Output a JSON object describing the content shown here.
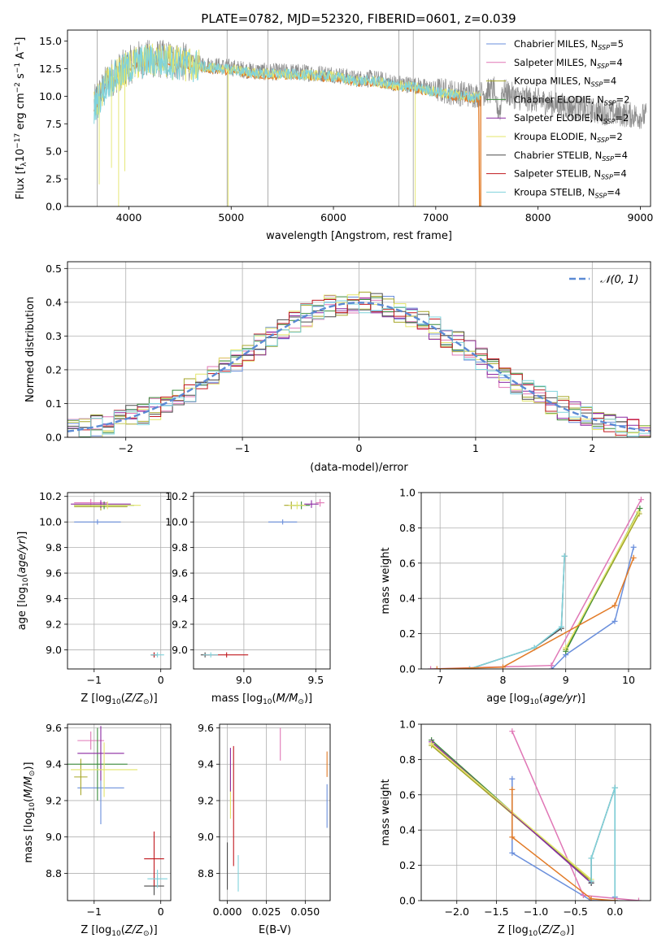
{
  "colors": {
    "chabrier_miles": "#6a8fdc",
    "salpeter_miles": "#e077b6",
    "kroupa_miles": "#a6a628",
    "chabrier_elodie": "#3c8c3c",
    "salpeter_elodie": "#8b2aa2",
    "kroupa_elodie": "#e3e56a",
    "chabrier_stelib": "#4b4b4b",
    "salpeter_stelib": "#c0181e",
    "kroupa_stelib": "#7fd3dc",
    "data_grey": "#8c8c8c",
    "orange": "#e27a26",
    "normal_dash": "#5b8ad4"
  },
  "legend": {
    "items": [
      {
        "label": "Chabrier MILES, N",
        "sub": "SSP",
        "tail": "=5",
        "color_key": "chabrier_miles"
      },
      {
        "label": "Salpeter MILES, N",
        "sub": "SSP",
        "tail": "=4",
        "color_key": "salpeter_miles"
      },
      {
        "label": "Kroupa MILES, N",
        "sub": "SSP",
        "tail": "=4",
        "color_key": "kroupa_miles"
      },
      {
        "label": "Chabrier ELODIE, N",
        "sub": "SSP",
        "tail": "=2",
        "color_key": "chabrier_elodie"
      },
      {
        "label": "Salpeter ELODIE, N",
        "sub": "SSP",
        "tail": "=2",
        "color_key": "salpeter_elodie"
      },
      {
        "label": "Kroupa ELODIE, N",
        "sub": "SSP",
        "tail": "=2",
        "color_key": "kroupa_elodie"
      },
      {
        "label": "Chabrier STELIB, N",
        "sub": "SSP",
        "tail": "=4",
        "color_key": "chabrier_stelib"
      },
      {
        "label": "Salpeter STELIB, N",
        "sub": "SSP",
        "tail": "=4",
        "color_key": "salpeter_stelib"
      },
      {
        "label": "Kroupa STELIB, N",
        "sub": "SSP",
        "tail": "=4",
        "color_key": "kroupa_stelib"
      }
    ]
  },
  "chart_data": [
    {
      "id": "spectrum",
      "type": "line",
      "title": "PLATE=0782, MJD=52320, FIBERID=0601, z=0.039",
      "xlabel": "wavelength [Angstrom, rest frame]",
      "ylabel": "Flux [f",
      "ylabel_parts": [
        "Flux [f",
        "λ",
        "10",
        "−17",
        " erg cm",
        "−2",
        " s",
        "−1",
        " A",
        "−1",
        "]"
      ],
      "xlim": [
        3400,
        9100
      ],
      "ylim": [
        0,
        16
      ],
      "xticks": [
        4000,
        5000,
        6000,
        7000,
        8000,
        9000
      ],
      "yticks": [
        0.0,
        2.5,
        5.0,
        7.5,
        10.0,
        12.5,
        15.0
      ],
      "continuum": {
        "x": [
          3650,
          3800,
          3950,
          4100,
          4250,
          4400,
          4600,
          4800,
          5000,
          5200,
          5400,
          5600,
          5800,
          6000,
          6200,
          6400,
          6600,
          6800,
          7000,
          7200,
          7400,
          7600,
          7800,
          8000,
          8200,
          8400,
          8600,
          8800,
          9000
        ],
        "y": [
          9.0,
          11.5,
          12.5,
          13.3,
          13.4,
          13.3,
          13.0,
          12.8,
          12.6,
          12.3,
          12.2,
          12.2,
          12.1,
          12.0,
          11.6,
          11.6,
          11.2,
          11.0,
          10.6,
          10.3,
          10.1,
          10.7,
          9.9,
          9.6,
          9.2,
          8.9,
          8.6,
          8.4,
          8.2
        ]
      }
    },
    {
      "id": "residuals",
      "type": "line",
      "xlabel": "(data-model)/error",
      "ylabel": "Normed distribution",
      "xlim": [
        -2.5,
        2.5
      ],
      "ylim": [
        0,
        0.52
      ],
      "xticks": [
        -2,
        -1,
        0,
        1,
        2
      ],
      "yticks": [
        0.0,
        0.1,
        0.2,
        0.3,
        0.4,
        0.5
      ],
      "legend": "$\\mathcal{N}(0,1)$",
      "legend_text": "𝒩(0, 1)",
      "series_name": "N(0,1)"
    },
    {
      "id": "age_vs_Z",
      "type": "scatter",
      "xlabel": "Z [log10(Z/Z⊙)]",
      "ylabel": "age [log10(age/yr)]",
      "xlim": [
        -1.4,
        0.15
      ],
      "ylim": [
        8.85,
        10.23
      ],
      "xticks": [
        -1,
        0
      ],
      "yticks": [
        9.0,
        9.2,
        9.4,
        9.6,
        9.8,
        10.0,
        10.2
      ],
      "points": [
        {
          "x": -0.95,
          "y": 10.0,
          "xerr": 0.35,
          "yerr": 0.02,
          "color_key": "chabrier_miles"
        },
        {
          "x": -1.05,
          "y": 10.15,
          "xerr": 0.25,
          "yerr": 0.03,
          "color_key": "salpeter_miles"
        },
        {
          "x": -0.9,
          "y": 10.12,
          "xerr": 0.4,
          "yerr": 0.03,
          "color_key": "kroupa_miles"
        },
        {
          "x": -0.85,
          "y": 10.13,
          "xerr": 0.45,
          "yerr": 0.03,
          "color_key": "chabrier_elodie"
        },
        {
          "x": -0.9,
          "y": 10.14,
          "xerr": 0.45,
          "yerr": 0.03,
          "color_key": "salpeter_elodie"
        },
        {
          "x": -0.8,
          "y": 10.13,
          "xerr": 0.5,
          "yerr": 0.03,
          "color_key": "kroupa_elodie"
        },
        {
          "x": -0.1,
          "y": 8.96,
          "xerr": 0.05,
          "yerr": 0.02,
          "color_key": "chabrier_stelib"
        },
        {
          "x": -0.1,
          "y": 8.96,
          "xerr": 0.05,
          "yerr": 0.02,
          "color_key": "salpeter_stelib"
        },
        {
          "x": -0.05,
          "y": 8.96,
          "xerr": 0.1,
          "yerr": 0.02,
          "color_key": "kroupa_stelib"
        }
      ]
    },
    {
      "id": "age_vs_mass",
      "type": "scatter",
      "xlabel": "mass [log10(M/M⊙)]",
      "ylabel": "",
      "xlim": [
        8.65,
        9.6
      ],
      "ylim": [
        8.85,
        10.23
      ],
      "xticks": [
        9.0,
        9.5
      ],
      "yticks": [
        9.0,
        9.2,
        9.4,
        9.6,
        9.8,
        10.0,
        10.2
      ],
      "points": [
        {
          "x": 9.27,
          "y": 10.0,
          "xerr": 0.1,
          "yerr": 0.02,
          "color_key": "chabrier_miles"
        },
        {
          "x": 9.53,
          "y": 10.15,
          "xerr": 0.03,
          "yerr": 0.03,
          "color_key": "salpeter_miles"
        },
        {
          "x": 9.33,
          "y": 10.13,
          "xerr": 0.05,
          "yerr": 0.03,
          "color_key": "kroupa_miles"
        },
        {
          "x": 9.4,
          "y": 10.13,
          "xerr": 0.06,
          "yerr": 0.03,
          "color_key": "chabrier_elodie"
        },
        {
          "x": 9.47,
          "y": 10.14,
          "xerr": 0.05,
          "yerr": 0.03,
          "color_key": "salpeter_elodie"
        },
        {
          "x": 9.37,
          "y": 10.13,
          "xerr": 0.06,
          "yerr": 0.03,
          "color_key": "kroupa_elodie"
        },
        {
          "x": 8.73,
          "y": 8.96,
          "xerr": 0.03,
          "yerr": 0.02,
          "color_key": "chabrier_stelib"
        },
        {
          "x": 8.88,
          "y": 8.96,
          "xerr": 0.15,
          "yerr": 0.02,
          "color_key": "salpeter_stelib"
        },
        {
          "x": 8.77,
          "y": 8.96,
          "xerr": 0.05,
          "yerr": 0.02,
          "color_key": "kroupa_stelib"
        }
      ]
    },
    {
      "id": "weight_vs_age",
      "type": "line",
      "xlabel": "age [log10(age/yr)]",
      "ylabel": "mass weight",
      "xlim": [
        6.7,
        10.35
      ],
      "ylim": [
        0,
        1.0
      ],
      "xticks": [
        7,
        8,
        9,
        10
      ],
      "yticks": [
        0.0,
        0.2,
        0.4,
        0.6,
        0.8,
        1.0
      ],
      "series": [
        {
          "name": "Chabrier MILES",
          "color_key": "chabrier_miles",
          "x": [
            8.78,
            9.0,
            9.78,
            10.08
          ],
          "y": [
            0.0,
            0.08,
            0.27,
            0.69
          ]
        },
        {
          "name": "Salpeter MILES",
          "color_key": "salpeter_miles",
          "x": [
            6.85,
            8.77,
            10.2
          ],
          "y": [
            0.0,
            0.02,
            0.96
          ]
        },
        {
          "name": "Kroupa MILES",
          "color_key": "kroupa_miles",
          "x": [
            9.0,
            10.17
          ],
          "y": [
            0.11,
            0.88
          ]
        },
        {
          "name": "Chabrier ELODIE",
          "color_key": "chabrier_elodie",
          "x": [
            9.0,
            10.18
          ],
          "y": [
            0.1,
            0.91
          ]
        },
        {
          "name": "Kroupa ELODIE",
          "color_key": "kroupa_elodie",
          "x": [
            9.0,
            10.16
          ],
          "y": [
            0.12,
            0.89
          ]
        },
        {
          "name": "Chabrier STELIB",
          "color_key": "chabrier_stelib",
          "x": [
            7.47,
            8.5,
            8.93,
            8.98
          ],
          "y": [
            0.0,
            0.12,
            0.23,
            0.64
          ]
        },
        {
          "name": "Kroupa STELIB",
          "color_key": "kroupa_stelib",
          "x": [
            7.47,
            8.5,
            8.93,
            8.98
          ],
          "y": [
            0.0,
            0.12,
            0.24,
            0.64
          ]
        },
        {
          "name": "Salpeter STELIB",
          "color_key": "orange",
          "x": [
            6.95,
            8.0,
            9.78,
            10.08
          ],
          "y": [
            0.0,
            0.01,
            0.36,
            0.63
          ]
        }
      ]
    },
    {
      "id": "mass_vs_Z",
      "type": "scatter",
      "xlabel": "Z [log10(Z/Z⊙)]",
      "ylabel": "mass [log10(M/M⊙)]",
      "xlim": [
        -1.4,
        0.15
      ],
      "ylim": [
        8.65,
        9.62
      ],
      "xticks": [
        -1,
        0
      ],
      "yticks": [
        8.8,
        9.0,
        9.2,
        9.4,
        9.6
      ],
      "points": [
        {
          "x": -0.9,
          "y": 9.27,
          "xerr": 0.35,
          "yerr": 0.2,
          "color_key": "chabrier_miles"
        },
        {
          "x": -1.05,
          "y": 9.53,
          "xerr": 0.2,
          "yerr": 0.05,
          "color_key": "salpeter_miles"
        },
        {
          "x": -1.2,
          "y": 9.33,
          "xerr": 0.1,
          "yerr": 0.1,
          "color_key": "kroupa_miles"
        },
        {
          "x": -0.95,
          "y": 9.4,
          "xerr": 0.45,
          "yerr": 0.2,
          "color_key": "chabrier_elodie"
        },
        {
          "x": -0.9,
          "y": 9.46,
          "xerr": 0.35,
          "yerr": 0.15,
          "color_key": "salpeter_elodie"
        },
        {
          "x": -0.85,
          "y": 9.37,
          "xerr": 0.5,
          "yerr": 0.15,
          "color_key": "kroupa_elodie"
        },
        {
          "x": -0.1,
          "y": 8.73,
          "xerr": 0.15,
          "yerr": 0.05,
          "color_key": "chabrier_stelib"
        },
        {
          "x": -0.1,
          "y": 8.88,
          "xerr": 0.15,
          "yerr": 0.15,
          "color_key": "salpeter_stelib"
        },
        {
          "x": -0.05,
          "y": 8.77,
          "xerr": 0.15,
          "yerr": 0.05,
          "color_key": "kroupa_stelib"
        }
      ]
    },
    {
      "id": "mass_vs_ebv",
      "type": "scatter",
      "xlabel": "E(B-V)",
      "ylabel": "",
      "xlim": [
        -0.005,
        0.066
      ],
      "ylim": [
        8.65,
        9.62
      ],
      "xticks": [
        0.0,
        0.025,
        0.05
      ],
      "xticklabels": [
        "0.000",
        "0.025",
        "0.050"
      ],
      "yticks": [
        8.8,
        9.0,
        9.2,
        9.4,
        9.6
      ],
      "points": [
        {
          "x": 0.064,
          "y": 9.17,
          "xerr": 0,
          "yerr": 0.12,
          "color_key": "chabrier_miles"
        },
        {
          "x": 0.034,
          "y": 9.51,
          "xerr": 0,
          "yerr": 0.09,
          "color_key": "salpeter_miles"
        },
        {
          "x": 0.064,
          "y": 9.4,
          "xerr": 0,
          "yerr": 0.07,
          "color_key": "orange"
        },
        {
          "x": 0.002,
          "y": 9.25,
          "xerr": 0,
          "yerr": 0.15,
          "color_key": "kroupa_elodie"
        },
        {
          "x": 0.002,
          "y": 9.37,
          "xerr": 0,
          "yerr": 0.12,
          "color_key": "salpeter_elodie"
        },
        {
          "x": 0.0,
          "y": 8.84,
          "xerr": 0,
          "yerr": 0.13,
          "color_key": "chabrier_stelib"
        },
        {
          "x": 0.004,
          "y": 9.17,
          "xerr": 0,
          "yerr": 0.33,
          "color_key": "salpeter_stelib"
        },
        {
          "x": 0.007,
          "y": 8.8,
          "xerr": 0,
          "yerr": 0.1,
          "color_key": "kroupa_stelib"
        }
      ]
    },
    {
      "id": "weight_vs_Z",
      "type": "line",
      "xlabel": "Z [log10(Z/Z⊙)]",
      "ylabel": "mass weight",
      "xlim": [
        -2.45,
        0.45
      ],
      "ylim": [
        0,
        1.0
      ],
      "xticks": [
        -2.0,
        -1.5,
        -1.0,
        -0.5,
        0.0
      ],
      "xticklabels": [
        "−2.0",
        "−1.5",
        "−1.0",
        "−0.5",
        "0.0"
      ],
      "yticks": [
        0.0,
        0.2,
        0.4,
        0.6,
        0.8,
        1.0
      ],
      "series": [
        {
          "name": "Chabrier MILES",
          "color_key": "chabrier_miles",
          "x": [
            -1.3,
            -1.3,
            -0.3,
            0.0,
            0.0
          ],
          "y": [
            0.69,
            0.27,
            0.0,
            0.0,
            0.02
          ]
        },
        {
          "name": "Salpeter MILES",
          "color_key": "salpeter_miles",
          "x": [
            -1.3,
            -0.4,
            0.3
          ],
          "y": [
            0.96,
            0.03,
            0.0
          ]
        },
        {
          "name": "Kroupa MILES",
          "color_key": "kroupa_miles",
          "x": [
            -2.32,
            -0.3
          ],
          "y": [
            0.88,
            0.11
          ]
        },
        {
          "name": "Chabrier ELODIE",
          "color_key": "chabrier_elodie",
          "x": [
            -2.32,
            -0.3
          ],
          "y": [
            0.91,
            0.1
          ]
        },
        {
          "name": "Salpeter ELODIE",
          "color_key": "salpeter_elodie",
          "x": [
            -2.32,
            -0.3
          ],
          "y": [
            0.9,
            0.1
          ]
        },
        {
          "name": "Kroupa ELODIE",
          "color_key": "kroupa_elodie",
          "x": [
            -2.32,
            -0.3
          ],
          "y": [
            0.89,
            0.12
          ]
        },
        {
          "name": "Chabrier STELIB",
          "color_key": "chabrier_stelib",
          "x": [
            -0.3,
            -0.3,
            0.0,
            0.0
          ],
          "y": [
            0.1,
            0.24,
            0.64,
            0.0
          ]
        },
        {
          "name": "Kroupa STELIB",
          "color_key": "kroupa_stelib",
          "x": [
            -0.3,
            -0.3,
            0.0,
            0.0
          ],
          "y": [
            0.11,
            0.24,
            0.64,
            0.0
          ]
        },
        {
          "name": "Salpeter STELIB",
          "color_key": "orange",
          "x": [
            -1.3,
            -1.3,
            -0.3,
            0.0
          ],
          "y": [
            0.63,
            0.36,
            0.01,
            0.0
          ]
        }
      ]
    }
  ]
}
